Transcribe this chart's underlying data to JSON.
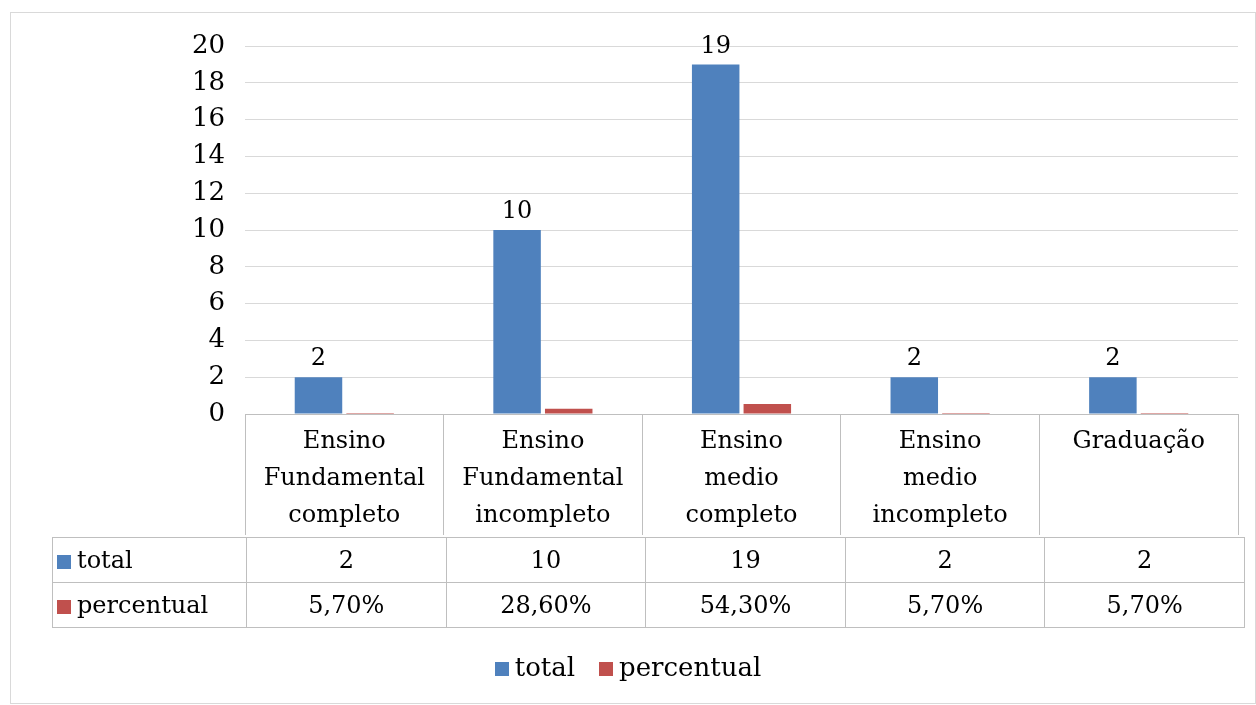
{
  "chart_data": {
    "type": "bar",
    "categories": [
      "Ensino Fundamental completo",
      "Ensino Fundamental incompleto",
      "Ensino medio completo",
      "Ensino medio incompleto",
      "Graduação"
    ],
    "series": [
      {
        "name": "total",
        "color": "#4f81bd",
        "values": [
          2,
          10,
          19,
          2,
          2
        ]
      },
      {
        "name": "percentual",
        "color": "#c0504d",
        "values": [
          0.057,
          0.286,
          0.543,
          0.057,
          0.057
        ],
        "value_labels": [
          "5,70%",
          "28,60%",
          "54,30%",
          "5,70%",
          "5,70%"
        ]
      }
    ],
    "annotations": [
      {
        "text": "2",
        "x": "Ensino Fundamental completo",
        "y": 2
      },
      {
        "text": "10",
        "x": "Ensino Fundamental incompleto",
        "y": 10
      },
      {
        "text": "19",
        "x": "Ensino medio completo",
        "y": 19
      },
      {
        "text": "2",
        "x": "Ensino medio incompleto",
        "y": 2
      },
      {
        "text": "2",
        "x": "Graduação",
        "y": 2
      }
    ],
    "ylim": [
      0,
      20
    ],
    "yticks": [
      0,
      2,
      4,
      6,
      8,
      10,
      12,
      14,
      16,
      18,
      20
    ],
    "grid": "y",
    "data_labels": true,
    "legend": "bottom"
  }
}
